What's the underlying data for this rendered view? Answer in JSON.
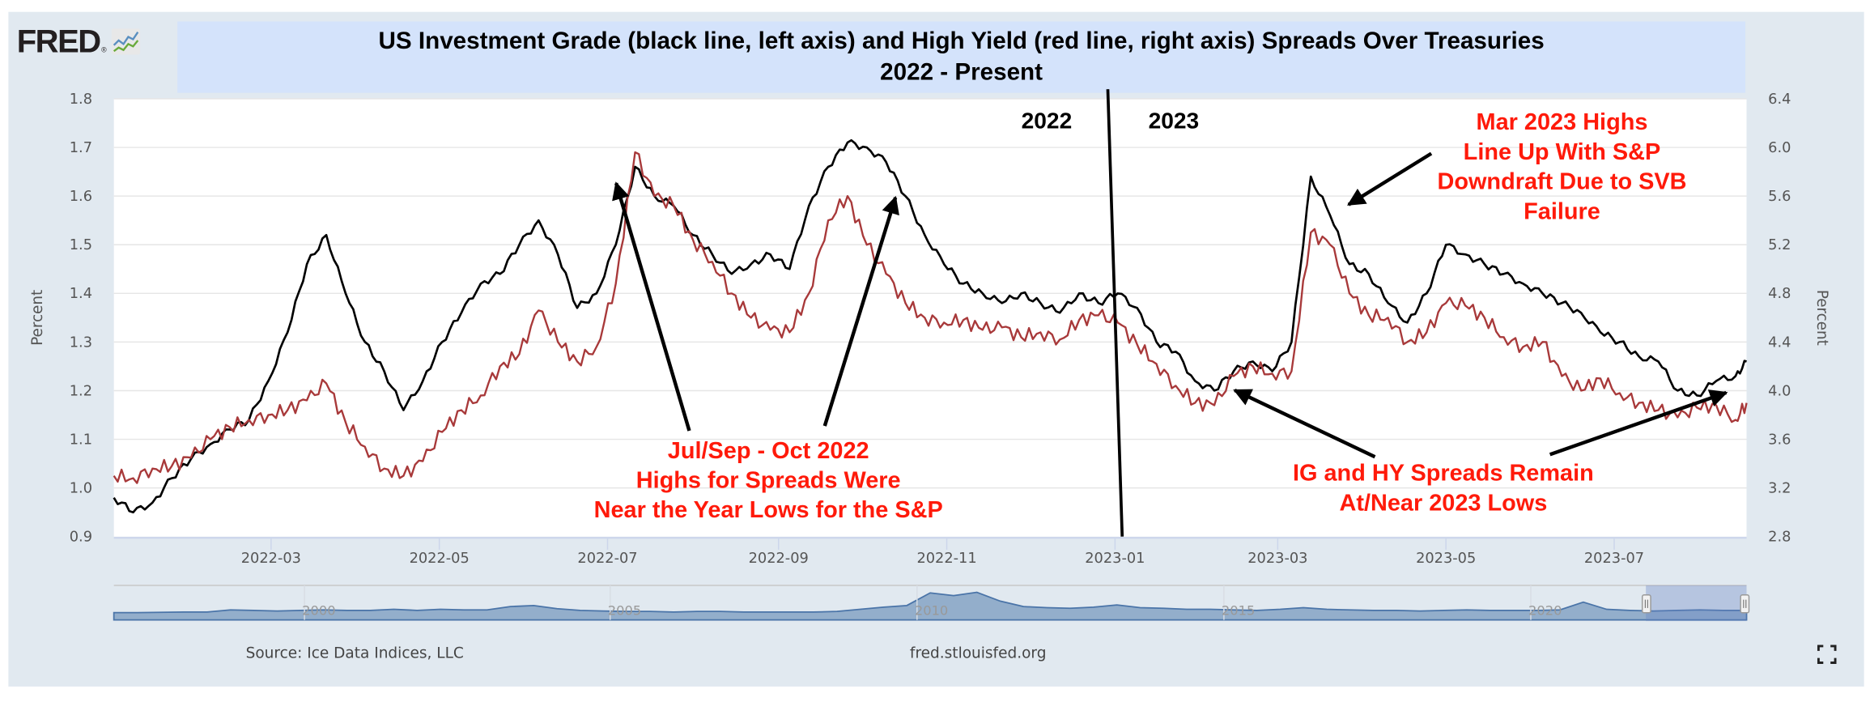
{
  "logo": {
    "text": "FRED",
    "icon": "fred-chart-logo-icon"
  },
  "chart_data": {
    "type": "line",
    "title": "US Investment Grade (black line, left axis) and High Yield (red line, right axis) Spreads Over Treasuries",
    "subtitle": "2022 - Present",
    "xlabel": "",
    "ylabel_left": "Percent",
    "ylabel_right": "Percent",
    "ylim_left": [
      0.9,
      1.8
    ],
    "ylim_right": [
      2.8,
      6.4
    ],
    "yticks_left": [
      "0.9",
      "1.0",
      "1.1",
      "1.2",
      "1.3",
      "1.4",
      "1.5",
      "1.6",
      "1.7",
      "1.8"
    ],
    "yticks_right": [
      "2.8",
      "3.2",
      "3.6",
      "4.0",
      "4.4",
      "4.8",
      "5.2",
      "5.6",
      "6.0",
      "6.4"
    ],
    "xlim": [
      "2022-01-03",
      "2023-08-18"
    ],
    "xticks": [
      "2022-03",
      "2022-05",
      "2022-07",
      "2022-09",
      "2022-11",
      "2023-01",
      "2023-03",
      "2023-05",
      "2023-07"
    ],
    "grid": true,
    "x": [
      "2022-01-03",
      "2022-01-10",
      "2022-01-17",
      "2022-01-24",
      "2022-01-31",
      "2022-02-07",
      "2022-02-14",
      "2022-02-21",
      "2022-02-28",
      "2022-03-07",
      "2022-03-14",
      "2022-03-21",
      "2022-03-28",
      "2022-04-04",
      "2022-04-11",
      "2022-04-18",
      "2022-04-25",
      "2022-05-02",
      "2022-05-09",
      "2022-05-16",
      "2022-05-23",
      "2022-05-30",
      "2022-06-06",
      "2022-06-13",
      "2022-06-20",
      "2022-06-27",
      "2022-07-04",
      "2022-07-11",
      "2022-07-18",
      "2022-07-25",
      "2022-08-01",
      "2022-08-08",
      "2022-08-15",
      "2022-08-22",
      "2022-08-29",
      "2022-09-05",
      "2022-09-12",
      "2022-09-19",
      "2022-09-26",
      "2022-10-03",
      "2022-10-10",
      "2022-10-17",
      "2022-10-24",
      "2022-10-31",
      "2022-11-07",
      "2022-11-14",
      "2022-11-21",
      "2022-11-28",
      "2022-12-05",
      "2022-12-12",
      "2022-12-19",
      "2022-12-26",
      "2023-01-02",
      "2023-01-09",
      "2023-01-16",
      "2023-01-23",
      "2023-01-30",
      "2023-02-06",
      "2023-02-13",
      "2023-02-20",
      "2023-02-27",
      "2023-03-06",
      "2023-03-13",
      "2023-03-20",
      "2023-03-27",
      "2023-04-03",
      "2023-04-10",
      "2023-04-17",
      "2023-04-24",
      "2023-05-01",
      "2023-05-08",
      "2023-05-15",
      "2023-05-22",
      "2023-05-29",
      "2023-06-05",
      "2023-06-12",
      "2023-06-19",
      "2023-06-26",
      "2023-07-03",
      "2023-07-10",
      "2023-07-17",
      "2023-07-24",
      "2023-07-31",
      "2023-08-07",
      "2023-08-14",
      "2023-08-18"
    ],
    "series": [
      {
        "name": "US Investment Grade spread (left axis)",
        "color": "#000000",
        "axis": "left",
        "values": [
          0.98,
          0.95,
          0.97,
          1.02,
          1.06,
          1.09,
          1.12,
          1.14,
          1.22,
          1.32,
          1.46,
          1.52,
          1.4,
          1.3,
          1.24,
          1.16,
          1.22,
          1.3,
          1.36,
          1.42,
          1.44,
          1.5,
          1.55,
          1.48,
          1.37,
          1.4,
          1.5,
          1.66,
          1.6,
          1.58,
          1.52,
          1.48,
          1.44,
          1.46,
          1.48,
          1.45,
          1.58,
          1.66,
          1.71,
          1.7,
          1.67,
          1.6,
          1.52,
          1.46,
          1.42,
          1.4,
          1.38,
          1.4,
          1.38,
          1.36,
          1.4,
          1.38,
          1.4,
          1.37,
          1.3,
          1.28,
          1.22,
          1.2,
          1.24,
          1.26,
          1.24,
          1.3,
          1.64,
          1.56,
          1.46,
          1.44,
          1.38,
          1.34,
          1.4,
          1.5,
          1.48,
          1.46,
          1.44,
          1.42,
          1.4,
          1.38,
          1.36,
          1.32,
          1.3,
          1.27,
          1.26,
          1.2,
          1.19,
          1.22,
          1.23,
          1.26
        ]
      },
      {
        "name": "US High Yield spread (right axis)",
        "color": "#a8393a",
        "axis": "right",
        "values": [
          3.3,
          3.28,
          3.36,
          3.38,
          3.45,
          3.6,
          3.7,
          3.76,
          3.8,
          3.84,
          3.92,
          4.06,
          3.74,
          3.54,
          3.36,
          3.3,
          3.42,
          3.66,
          3.84,
          3.96,
          4.2,
          4.3,
          4.66,
          4.4,
          4.24,
          4.36,
          4.88,
          5.96,
          5.6,
          5.52,
          5.24,
          5.06,
          4.8,
          4.6,
          4.5,
          4.48,
          4.8,
          5.4,
          5.6,
          5.2,
          4.96,
          4.72,
          4.6,
          4.56,
          4.58,
          4.5,
          4.52,
          4.44,
          4.48,
          4.42,
          4.58,
          4.62,
          4.56,
          4.38,
          4.22,
          4.04,
          3.9,
          3.88,
          4.12,
          4.2,
          4.14,
          4.16,
          5.3,
          5.2,
          4.8,
          4.62,
          4.6,
          4.4,
          4.48,
          4.72,
          4.7,
          4.6,
          4.44,
          4.36,
          4.4,
          4.12,
          4.0,
          4.1,
          3.98,
          3.9,
          3.84,
          3.78,
          3.86,
          3.88,
          3.76,
          3.9
        ]
      }
    ],
    "divider": {
      "date": "2023-01-01",
      "left_label": "2022",
      "right_label": "2023"
    },
    "annotations": [
      {
        "text": [
          "Jul/Sep - Oct 2022",
          "Highs for Spreads Were",
          "Near the Year Lows for the S&P"
        ],
        "color": "#ff1a0a",
        "arrows_to": [
          "2022-07-05",
          "2022-10-12"
        ]
      },
      {
        "text": [
          "Mar 2023 Highs",
          "Line Up With S&P",
          "Downdraft Due to SVB",
          "Failure"
        ],
        "color": "#ff1a0a",
        "arrows_to": [
          "2023-03-22"
        ]
      },
      {
        "text": [
          "IG and HY Spreads Remain",
          "At/Near 2023 Lows"
        ],
        "color": "#ff1a0a",
        "arrows_to": [
          "2023-02-08",
          "2023-08-16"
        ]
      }
    ],
    "navigator": {
      "labels": [
        "2000",
        "2005",
        "2010",
        "2015",
        "2020"
      ],
      "selected_range": [
        "2022-01-03",
        "2023-08-18"
      ]
    }
  },
  "footer": {
    "source": "Source: Ice Data Indices, LLC",
    "site": "fred.stlouisfed.org"
  }
}
